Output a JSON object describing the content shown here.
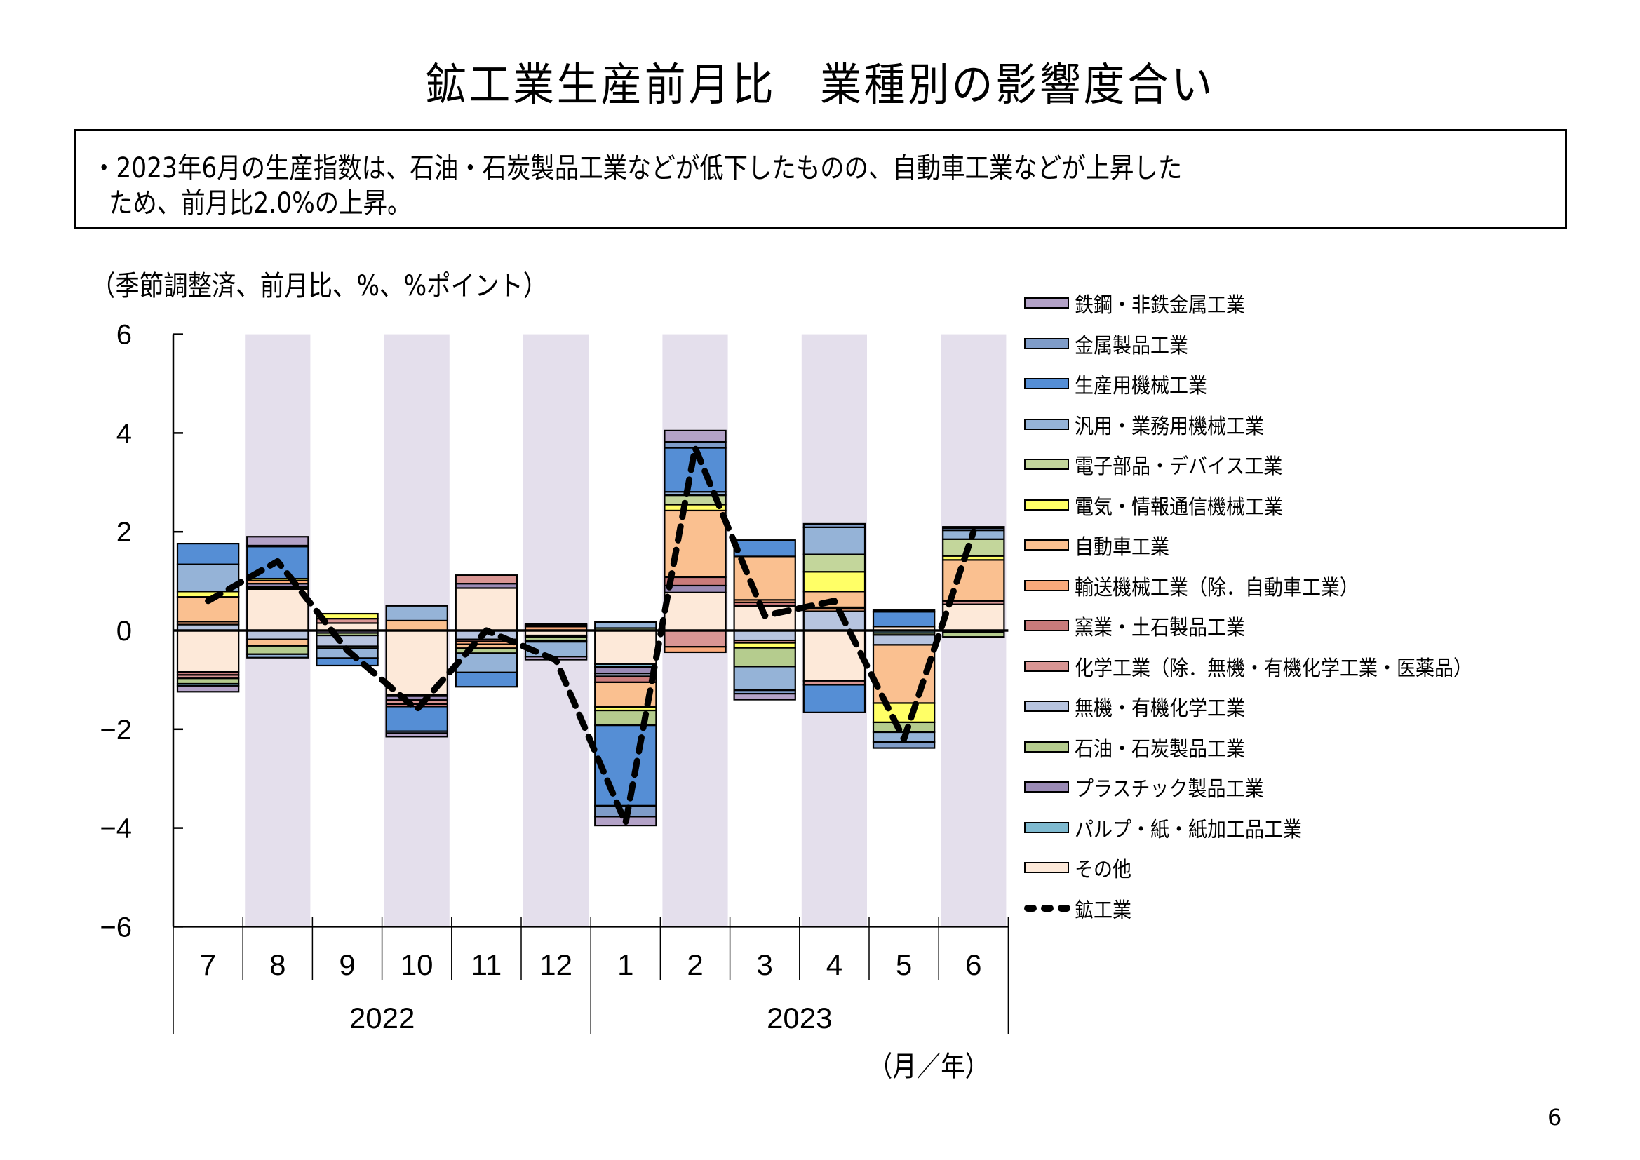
{
  "page": {
    "title": "鉱工業生産前月比　業種別の影響度合い",
    "summary_line1": "・2023年6月の生産指数は、石油・石炭製品工業などが低下したものの、自動車工業などが上昇した",
    "summary_line2": "ため、前月比2.0%の上昇。",
    "unit_note": "（季節調整済、前月比、%、%ポイント）",
    "x_unit_note": "（月／年）",
    "page_number": "6"
  },
  "legend": [
    {
      "key": "iron_steel",
      "label": "鉄鋼・非鉄金属工業",
      "color": "#B3A2C7"
    },
    {
      "key": "fabricated_metal",
      "label": "金属製品工業",
      "color": "#7F9CC8"
    },
    {
      "key": "production_machinery",
      "label": "生産用機械工業",
      "color": "#558ED5"
    },
    {
      "key": "general_machinery",
      "label": "汎用・業務用機械工業",
      "color": "#95B3D7"
    },
    {
      "key": "electronic_parts",
      "label": "電子部品・デバイス工業",
      "color": "#C3D69B"
    },
    {
      "key": "electrical_machinery",
      "label": "電気・情報通信機械工業",
      "color": "#FFFF66"
    },
    {
      "key": "motor_vehicles",
      "label": "自動車工業",
      "color": "#FAC090"
    },
    {
      "key": "transport_ex_auto",
      "label": "輸送機械工業（除．自動車工業）",
      "color": "#F9A97B"
    },
    {
      "key": "ceramics",
      "label": "窯業・土石製品工業",
      "color": "#C97B7B"
    },
    {
      "key": "chemicals_ex",
      "label": "化学工業（除．無機・有機化学工業・医薬品）",
      "color": "#D99694"
    },
    {
      "key": "inorganic_organic",
      "label": "無機・有機化学工業",
      "color": "#B7C4DF"
    },
    {
      "key": "petroleum_coal",
      "label": "石油・石炭製品工業",
      "color": "#B5CC8E"
    },
    {
      "key": "plastics",
      "label": "プラスチック製品工業",
      "color": "#9A8AB5"
    },
    {
      "key": "pulp_paper",
      "label": "パルプ・紙・紙加工品工業",
      "color": "#7FBAD0"
    },
    {
      "key": "others",
      "label": "その他",
      "color": "#FDE9D9"
    },
    {
      "key": "mining_manufacturing",
      "label": "鉱工業",
      "color": "#000000",
      "style": "dashed-line"
    }
  ],
  "chart_data": {
    "type": "bar",
    "stacked": true,
    "title": "鉱工業生産前月比　業種別の影響度合い",
    "ylabel": "（季節調整済、前月比、%、%ポイント）",
    "xlabel": "（月／年）",
    "ylim": [
      -6,
      6
    ],
    "yticks": [
      6,
      4,
      2,
      0,
      -2,
      -4,
      -6
    ],
    "y_tick_labels": [
      "6",
      "4",
      "2",
      "0",
      "−2",
      "−4",
      "−6"
    ],
    "categories": [
      "7",
      "8",
      "9",
      "10",
      "11",
      "12",
      "1",
      "2",
      "3",
      "4",
      "5",
      "6"
    ],
    "year_groups": [
      {
        "label": "2022",
        "months": [
          "7",
          "8",
          "9",
          "10",
          "11",
          "12"
        ]
      },
      {
        "label": "2023",
        "months": [
          "1",
          "2",
          "3",
          "4",
          "5",
          "6"
        ]
      }
    ],
    "shaded_categories": [
      "8",
      "10",
      "12",
      "2",
      "4",
      "6"
    ],
    "legend_position": "right",
    "grid": false,
    "bars": [
      {
        "month": "7",
        "year": "2022",
        "positive": [
          [
            "inorganic_organic",
            0.12
          ],
          [
            "transport_ex_auto",
            0.06
          ],
          [
            "motor_vehicles",
            0.5
          ],
          [
            "electrical_machinery",
            0.11
          ],
          [
            "general_machinery",
            0.55
          ],
          [
            "production_machinery",
            0.42
          ]
        ],
        "negative": [
          [
            "others",
            -0.84
          ],
          [
            "ceramics",
            -0.06
          ],
          [
            "chemicals_ex",
            -0.07
          ],
          [
            "petroleum_coal",
            -0.11
          ],
          [
            "pulp_paper",
            -0.04
          ],
          [
            "iron_steel",
            -0.12
          ]
        ]
      },
      {
        "month": "8",
        "year": "2022",
        "positive": [
          [
            "others",
            0.84
          ],
          [
            "pulp_paper",
            0.04
          ],
          [
            "plastics",
            0.07
          ],
          [
            "transport_ex_auto",
            0.06
          ],
          [
            "electrical_machinery",
            0.04
          ],
          [
            "production_machinery",
            0.65
          ],
          [
            "fabricated_metal",
            0.02
          ],
          [
            "iron_steel",
            0.18
          ]
        ],
        "negative": [
          [
            "inorganic_organic",
            -0.18
          ],
          [
            "motor_vehicles",
            -0.13
          ],
          [
            "petroleum_coal",
            -0.17
          ],
          [
            "general_machinery",
            -0.07
          ]
        ]
      },
      {
        "month": "9",
        "year": "2022",
        "positive": [
          [
            "others",
            0.15
          ],
          [
            "chemicals_ex",
            0.09
          ],
          [
            "electrical_machinery",
            0.1
          ]
        ],
        "negative": [
          [
            "plastics",
            -0.05
          ],
          [
            "petroleum_coal",
            -0.05
          ],
          [
            "inorganic_organic",
            -0.22
          ],
          [
            "electronic_parts",
            -0.04
          ],
          [
            "general_machinery",
            -0.2
          ],
          [
            "production_machinery",
            -0.15
          ]
        ]
      },
      {
        "month": "10",
        "year": "2022",
        "positive": [
          [
            "motor_vehicles",
            0.2
          ],
          [
            "general_machinery",
            0.3
          ]
        ],
        "negative": [
          [
            "others",
            -1.3
          ],
          [
            "pulp_paper",
            -0.03
          ],
          [
            "plastics",
            -0.08
          ],
          [
            "chemicals_ex",
            -0.08
          ],
          [
            "ceramics",
            -0.05
          ],
          [
            "production_machinery",
            -0.5
          ],
          [
            "fabricated_metal",
            -0.04
          ],
          [
            "iron_steel",
            -0.07
          ]
        ]
      },
      {
        "month": "11",
        "year": "2022",
        "positive": [
          [
            "others",
            0.86
          ],
          [
            "plastics",
            0.09
          ],
          [
            "chemicals_ex",
            0.17
          ]
        ],
        "negative": [
          [
            "inorganic_organic",
            -0.18
          ],
          [
            "ceramics",
            -0.04
          ],
          [
            "transport_ex_auto",
            -0.06
          ],
          [
            "motor_vehicles",
            -0.08
          ],
          [
            "petroleum_coal",
            -0.1
          ],
          [
            "general_machinery",
            -0.39
          ],
          [
            "production_machinery",
            -0.29
          ]
        ]
      },
      {
        "month": "12",
        "year": "2022",
        "positive": [
          [
            "transport_ex_auto",
            0.08
          ],
          [
            "production_machinery",
            0.03
          ],
          [
            "general_machinery",
            0.03
          ]
        ],
        "negative": [
          [
            "others",
            -0.1
          ],
          [
            "plastics",
            -0.03
          ],
          [
            "petroleum_coal",
            -0.07
          ],
          [
            "chemicals_ex",
            -0.03
          ],
          [
            "general_machinery",
            -0.3
          ],
          [
            "iron_steel",
            -0.06
          ]
        ]
      },
      {
        "month": "1",
        "year": "2023",
        "positive": [
          [
            "petroleum_coal",
            0.05
          ],
          [
            "general_machinery",
            0.12
          ]
        ],
        "negative": [
          [
            "others",
            -0.68
          ],
          [
            "pulp_paper",
            -0.06
          ],
          [
            "plastics",
            -0.13
          ],
          [
            "inorganic_organic",
            -0.06
          ],
          [
            "ceramics",
            -0.12
          ],
          [
            "motor_vehicles",
            -0.5
          ],
          [
            "electrical_machinery",
            -0.07
          ],
          [
            "petroleum_coal",
            -0.3
          ],
          [
            "production_machinery",
            -1.63
          ],
          [
            "fabricated_metal",
            -0.22
          ],
          [
            "iron_steel",
            -0.18
          ]
        ]
      },
      {
        "month": "2",
        "year": "2023",
        "positive": [
          [
            "others",
            0.77
          ],
          [
            "plastics",
            0.14
          ],
          [
            "ceramics",
            0.17
          ],
          [
            "motor_vehicles",
            1.35
          ],
          [
            "electrical_machinery",
            0.12
          ],
          [
            "electronic_parts",
            0.19
          ],
          [
            "general_machinery",
            0.07
          ],
          [
            "production_machinery",
            0.89
          ],
          [
            "fabricated_metal",
            0.12
          ],
          [
            "iron_steel",
            0.23
          ]
        ],
        "negative": [
          [
            "chemicals_ex",
            -0.33
          ],
          [
            "transport_ex_auto",
            -0.11
          ]
        ]
      },
      {
        "month": "3",
        "year": "2023",
        "positive": [
          [
            "others",
            0.5
          ],
          [
            "ceramics",
            0.07
          ],
          [
            "transport_ex_auto",
            0.05
          ],
          [
            "motor_vehicles",
            0.88
          ],
          [
            "production_machinery",
            0.33
          ]
        ],
        "negative": [
          [
            "inorganic_organic",
            -0.2
          ],
          [
            "chemicals_ex",
            -0.05
          ],
          [
            "electrical_machinery",
            -0.1
          ],
          [
            "petroleum_coal",
            -0.38
          ],
          [
            "general_machinery",
            -0.48
          ],
          [
            "fabricated_metal",
            -0.07
          ],
          [
            "iron_steel",
            -0.12
          ]
        ]
      },
      {
        "month": "4",
        "year": "2023",
        "positive": [
          [
            "inorganic_organic",
            0.39
          ],
          [
            "transport_ex_auto",
            0.05
          ],
          [
            "chemicals_ex",
            0.03
          ],
          [
            "motor_vehicles",
            0.32
          ],
          [
            "electrical_machinery",
            0.4
          ],
          [
            "electronic_parts",
            0.35
          ],
          [
            "general_machinery",
            0.55
          ],
          [
            "fabricated_metal",
            0.07
          ]
        ],
        "negative": [
          [
            "others",
            -1.02
          ],
          [
            "chemicals_ex",
            -0.08
          ],
          [
            "production_machinery",
            -0.56
          ]
        ]
      },
      {
        "month": "5",
        "year": "2023",
        "positive": [
          [
            "others",
            0.08
          ],
          [
            "production_machinery",
            0.3
          ],
          [
            "iron_steel",
            0.03
          ]
        ],
        "negative": [
          [
            "pulp_paper",
            -0.05
          ],
          [
            "petroleum_coal",
            -0.04
          ],
          [
            "inorganic_organic",
            -0.2
          ],
          [
            "motor_vehicles",
            -1.18
          ],
          [
            "electrical_machinery",
            -0.39
          ],
          [
            "petroleum_coal",
            -0.2
          ],
          [
            "general_machinery",
            -0.2
          ],
          [
            "fabricated_metal",
            -0.12
          ]
        ]
      },
      {
        "month": "6",
        "year": "2023",
        "positive": [
          [
            "others",
            0.53
          ],
          [
            "chemicals_ex",
            0.07
          ],
          [
            "motor_vehicles",
            0.83
          ],
          [
            "electrical_machinery",
            0.08
          ],
          [
            "electronic_parts",
            0.34
          ],
          [
            "general_machinery",
            0.18
          ],
          [
            "fabricated_metal",
            0.04
          ],
          [
            "iron_steel",
            0.03
          ]
        ],
        "negative": [
          [
            "pulp_paper",
            -0.03
          ],
          [
            "petroleum_coal",
            -0.1
          ]
        ]
      }
    ],
    "line_series": {
      "name": "鉱工業",
      "style": "dashed",
      "values": [
        0.6,
        1.4,
        -0.4,
        -1.6,
        0.0,
        -0.6,
        -3.9,
        3.7,
        0.3,
        0.6,
        -2.2,
        2.0
      ]
    }
  }
}
